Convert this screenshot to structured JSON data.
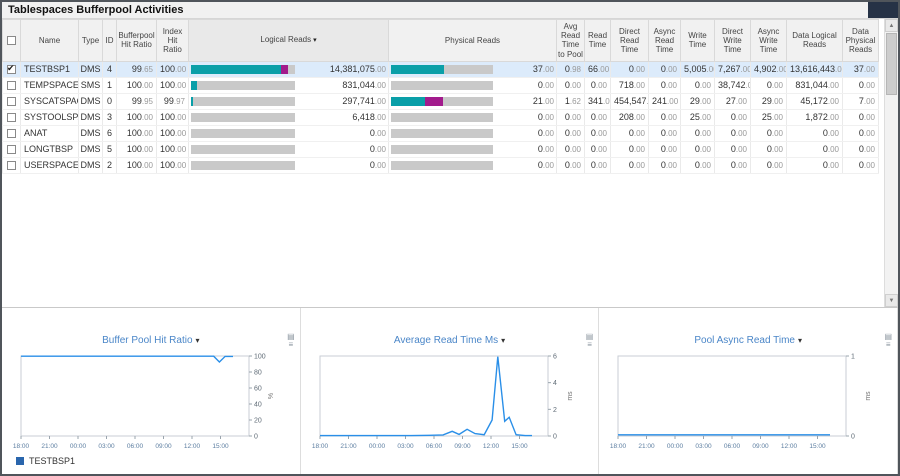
{
  "title": "Tablespaces Bufferpool Activities",
  "icons": {
    "sort": "▾",
    "caret": "▾",
    "up": "▲",
    "down": "▼",
    "chart_grid": "▤",
    "chart_lines": "≡"
  },
  "colors": {
    "teal": "#0a9fa8",
    "magenta": "#a21b8c",
    "track": "#c9c9c9",
    "line_blue": "#2a8fe8",
    "legend_blue": "#2a66ad",
    "accent_blue": "#4a86c8"
  },
  "table": {
    "headers": {
      "name": "Name",
      "type": "Type",
      "id": "ID",
      "bufferpool_hit_ratio": "Bufferpool Hit Ratio",
      "index_hit_ratio": "Index Hit Ratio",
      "logical_reads": "Logical Reads",
      "physical_reads": "Physical Reads",
      "avg_read_time_to_pool": "Avg Read Time to Pool",
      "read_time": "Read Time",
      "direct_read_time": "Direct Read Time",
      "async_read_time": "Async Read Time",
      "write_time": "Write Time",
      "direct_write_time": "Direct Write Time",
      "async_write_time": "Async Write Time",
      "data_logical_reads": "Data Logical Reads",
      "data_physical_reads": "Data Physical Reads"
    },
    "rows": [
      {
        "checked": true,
        "name": "TESTBSP1",
        "type": "DMS",
        "id": "4",
        "values": {
          "bufferpool_hit_ratio": "99.65",
          "index_hit_ratio": "100.00",
          "logical_reads": "14,381,075.00",
          "physical_reads": "37.00",
          "avg_read_time_to_pool": "0.98",
          "read_time": "66.00",
          "direct_read_time": "0.00",
          "async_read_time": "0.00",
          "write_time": "5,005.00",
          "direct_write_time": "7,267.00",
          "async_write_time": "4,902.00",
          "data_logical_reads": "13,616,443.00",
          "data_physical_reads": "37.00"
        },
        "logical_bar": [
          [
            "teal",
            87
          ],
          [
            "magenta",
            6
          ]
        ],
        "physical_bar": [
          [
            "teal",
            52
          ]
        ]
      },
      {
        "checked": false,
        "name": "TEMPSPACE1",
        "type": "SMS",
        "id": "1",
        "values": {
          "bufferpool_hit_ratio": "100.00",
          "index_hit_ratio": "100.00",
          "logical_reads": "831,044.00",
          "physical_reads": "0.00",
          "avg_read_time_to_pool": "0.00",
          "read_time": "0.00",
          "direct_read_time": "718.00",
          "async_read_time": "0.00",
          "write_time": "0.00",
          "direct_write_time": "38,742.00",
          "async_write_time": "0.00",
          "data_logical_reads": "831,044.00",
          "data_physical_reads": "0.00"
        },
        "logical_bar": [
          [
            "teal",
            6
          ]
        ],
        "physical_bar": []
      },
      {
        "checked": false,
        "name": "SYSCATSPACE",
        "type": "DMS",
        "id": "0",
        "values": {
          "bufferpool_hit_ratio": "99.95",
          "index_hit_ratio": "99.97",
          "logical_reads": "297,741.00",
          "physical_reads": "21.00",
          "avg_read_time_to_pool": "1.62",
          "read_time": "341.00",
          "direct_read_time": "454,547.00",
          "async_read_time": "241.00",
          "write_time": "29.00",
          "direct_write_time": "27.00",
          "async_write_time": "29.00",
          "data_logical_reads": "45,172.00",
          "data_physical_reads": "7.00"
        },
        "logical_bar": [
          [
            "teal",
            2
          ]
        ],
        "physical_bar": [
          [
            "teal",
            33
          ],
          [
            "magenta",
            18
          ]
        ]
      },
      {
        "checked": false,
        "name": "SYSTOOLSPACE",
        "type": "DMS",
        "id": "3",
        "values": {
          "bufferpool_hit_ratio": "100.00",
          "index_hit_ratio": "100.00",
          "logical_reads": "6,418.00",
          "physical_reads": "0.00",
          "avg_read_time_to_pool": "0.00",
          "read_time": "0.00",
          "direct_read_time": "208.00",
          "async_read_time": "0.00",
          "write_time": "25.00",
          "direct_write_time": "0.00",
          "async_write_time": "25.00",
          "data_logical_reads": "1,872.00",
          "data_physical_reads": "0.00"
        },
        "logical_bar": [],
        "physical_bar": []
      },
      {
        "checked": false,
        "name": "ANAT",
        "type": "DMS",
        "id": "6",
        "values": {
          "bufferpool_hit_ratio": "100.00",
          "index_hit_ratio": "100.00",
          "logical_reads": "0.00",
          "physical_reads": "0.00",
          "avg_read_time_to_pool": "0.00",
          "read_time": "0.00",
          "direct_read_time": "0.00",
          "async_read_time": "0.00",
          "write_time": "0.00",
          "direct_write_time": "0.00",
          "async_write_time": "0.00",
          "data_logical_reads": "0.00",
          "data_physical_reads": "0.00"
        },
        "logical_bar": [],
        "physical_bar": []
      },
      {
        "checked": false,
        "name": "LONGTBSP",
        "type": "DMS",
        "id": "5",
        "values": {
          "bufferpool_hit_ratio": "100.00",
          "index_hit_ratio": "100.00",
          "logical_reads": "0.00",
          "physical_reads": "0.00",
          "avg_read_time_to_pool": "0.00",
          "read_time": "0.00",
          "direct_read_time": "0.00",
          "async_read_time": "0.00",
          "write_time": "0.00",
          "direct_write_time": "0.00",
          "async_write_time": "0.00",
          "data_logical_reads": "0.00",
          "data_physical_reads": "0.00"
        },
        "logical_bar": [],
        "physical_bar": []
      },
      {
        "checked": false,
        "name": "USERSPACE1",
        "type": "DMS",
        "id": "2",
        "values": {
          "bufferpool_hit_ratio": "100.00",
          "index_hit_ratio": "100.00",
          "logical_reads": "0.00",
          "physical_reads": "0.00",
          "avg_read_time_to_pool": "0.00",
          "read_time": "0.00",
          "direct_read_time": "0.00",
          "async_read_time": "0.00",
          "write_time": "0.00",
          "direct_write_time": "0.00",
          "async_write_time": "0.00",
          "data_logical_reads": "0.00",
          "data_physical_reads": "0.00"
        },
        "logical_bar": [],
        "physical_bar": []
      }
    ]
  },
  "charts": [
    {
      "type": "line",
      "title": "Buffer Pool Hit Ratio",
      "unit": "%",
      "ymax": 100,
      "yticks": [
        0,
        20,
        40,
        60,
        80,
        100
      ],
      "xlabels": [
        "18:00",
        "21:00",
        "00:00",
        "03:00",
        "06:00",
        "09:00",
        "12:00",
        "15:00"
      ],
      "series": [
        {
          "name": "TESTBSP1",
          "points": [
            [
              0,
              99.8
            ],
            [
              0.08,
              99.8
            ],
            [
              0.16,
              99.8
            ],
            [
              0.24,
              99.8
            ],
            [
              0.32,
              99.8
            ],
            [
              0.4,
              99.8
            ],
            [
              0.48,
              99.8
            ],
            [
              0.56,
              99.8
            ],
            [
              0.64,
              99.8
            ],
            [
              0.72,
              99.8
            ],
            [
              0.8,
              99.8
            ],
            [
              0.845,
              99.8
            ],
            [
              0.87,
              92.5
            ],
            [
              0.895,
              99.5
            ],
            [
              0.93,
              99.5
            ]
          ]
        }
      ]
    },
    {
      "type": "line",
      "title": "Average Read Time Ms",
      "unit": "ms",
      "ymax": 6,
      "yticks": [
        0,
        2,
        4,
        6
      ],
      "xlabels": [
        "18:00",
        "21:00",
        "00:00",
        "03:00",
        "06:00",
        "09:00",
        "12:00",
        "15:00"
      ],
      "series": [
        {
          "name": "TESTBSP1",
          "points": [
            [
              0,
              0.03
            ],
            [
              0.08,
              0.03
            ],
            [
              0.16,
              0.03
            ],
            [
              0.24,
              0.03
            ],
            [
              0.32,
              0.03
            ],
            [
              0.4,
              0.03
            ],
            [
              0.48,
              0.05
            ],
            [
              0.54,
              0.08
            ],
            [
              0.58,
              0.35
            ],
            [
              0.61,
              0.12
            ],
            [
              0.645,
              0.5
            ],
            [
              0.68,
              0.18
            ],
            [
              0.72,
              0.1
            ],
            [
              0.755,
              1.2
            ],
            [
              0.78,
              5.95
            ],
            [
              0.81,
              1.1
            ],
            [
              0.83,
              1.4
            ],
            [
              0.86,
              0.1
            ],
            [
              0.9,
              0.03
            ],
            [
              0.93,
              0.03
            ]
          ]
        }
      ]
    },
    {
      "type": "line",
      "title": "Pool Async Read Time",
      "unit": "ms",
      "ymax": 1,
      "yticks": [
        0,
        1
      ],
      "xlabels": [
        "18:00",
        "21:00",
        "00:00",
        "03:00",
        "06:00",
        "09:00",
        "12:00",
        "15:00"
      ],
      "series": [
        {
          "name": "TESTBSP1",
          "points": [
            [
              0,
              0.015
            ],
            [
              0.3,
              0.015
            ],
            [
              0.6,
              0.015
            ],
            [
              0.93,
              0.015
            ]
          ]
        }
      ]
    }
  ],
  "legend": {
    "label": "TESTBSP1"
  }
}
